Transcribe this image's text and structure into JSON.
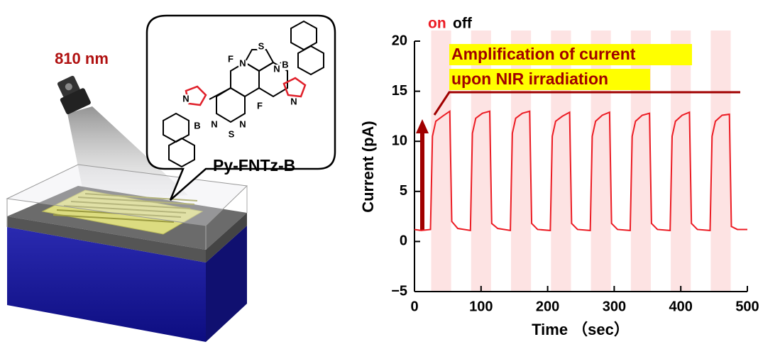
{
  "illustration": {
    "wavelength": "810 nm",
    "molecule": "Py-FNTz-B",
    "atoms": [
      "F",
      "F",
      "N",
      "S",
      "N",
      "B",
      "N",
      "N",
      "S",
      "N",
      "B",
      "N"
    ]
  },
  "chart_data": {
    "type": "line",
    "xlabel": "Time （sec）",
    "ylabel": "Current (pA)",
    "annotations": {
      "on": "on",
      "off": "off",
      "note": [
        "Amplification of current",
        "upon NIR irradiation"
      ]
    },
    "on_intervals": [
      [
        25,
        55
      ],
      [
        85,
        115
      ],
      [
        145,
        175
      ],
      [
        205,
        235
      ],
      [
        265,
        295
      ],
      [
        325,
        355
      ],
      [
        385,
        415
      ],
      [
        445,
        475
      ]
    ],
    "band_color": "#fde3e3",
    "x": [
      0,
      10,
      24,
      27,
      32,
      42,
      53,
      56,
      65,
      84,
      87,
      92,
      102,
      113,
      116,
      125,
      144,
      147,
      152,
      162,
      173,
      176,
      185,
      204,
      207,
      212,
      222,
      233,
      236,
      245,
      264,
      267,
      272,
      282,
      293,
      296,
      305,
      324,
      327,
      332,
      342,
      353,
      356,
      365,
      384,
      387,
      392,
      402,
      413,
      416,
      425,
      444,
      447,
      452,
      462,
      473,
      476,
      485,
      500
    ],
    "series": [
      {
        "name": "Current",
        "color": "#ec1c24",
        "values": [
          1.2,
          1.1,
          1.2,
          10.5,
          12,
          12.5,
          13,
          2,
          1.3,
          1.1,
          10.8,
          12.3,
          12.8,
          13,
          1.8,
          1.3,
          1.1,
          10.8,
          12.3,
          12.8,
          13,
          1.8,
          1.2,
          1.1,
          10.5,
          12,
          12.5,
          12.9,
          1.8,
          1.2,
          1.1,
          10.5,
          12,
          12.6,
          12.9,
          1.8,
          1.2,
          1.1,
          10.5,
          12,
          12.6,
          12.8,
          1.8,
          1.2,
          1.1,
          10.5,
          12,
          12.6,
          12.9,
          1.8,
          1.2,
          1.1,
          10.5,
          12,
          12.6,
          12.7,
          1.5,
          1.2,
          1.2
        ]
      }
    ],
    "xlim": [
      0,
      500
    ],
    "xticks": [
      0,
      100,
      200,
      300,
      400,
      500
    ],
    "ylim": [
      -5,
      20
    ],
    "yticks": [
      {
        "value": -5,
        "label": "−5"
      },
      0,
      5,
      10,
      15,
      20
    ]
  }
}
